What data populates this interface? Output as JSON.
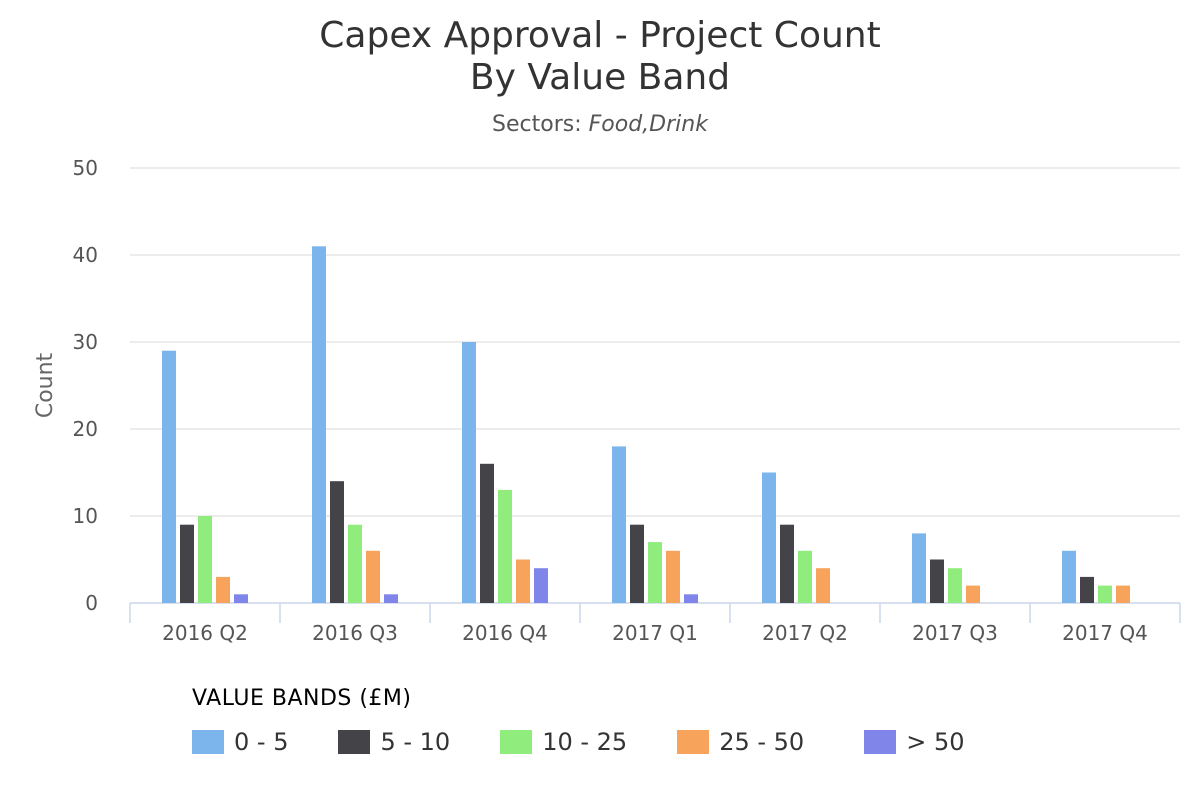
{
  "chart_data": {
    "type": "bar",
    "title_line1": "Capex Approval - Project Count",
    "title_line2": "By Value Band",
    "subtitle_prefix": "Sectors: ",
    "subtitle_sectors": "Food,Drink",
    "ylabel": "Count",
    "xlabel": "",
    "ylim": [
      0,
      50
    ],
    "yticks": [
      0,
      10,
      20,
      30,
      40,
      50
    ],
    "grid": true,
    "legend_title": "VALUE BANDS (£M)",
    "legend_position": "bottom-left",
    "categories": [
      "2016 Q2",
      "2016 Q3",
      "2016 Q4",
      "2017 Q1",
      "2017 Q2",
      "2017 Q3",
      "2017 Q4"
    ],
    "series": [
      {
        "name": "0 - 5",
        "color": "#7cb5ec",
        "values": [
          29,
          41,
          30,
          18,
          15,
          8,
          6
        ]
      },
      {
        "name": "5 - 10",
        "color": "#434348",
        "values": [
          9,
          14,
          16,
          9,
          9,
          5,
          3
        ]
      },
      {
        "name": "10 - 25",
        "color": "#90ed7d",
        "values": [
          10,
          9,
          13,
          7,
          6,
          4,
          2
        ]
      },
      {
        "name": "25 - 50",
        "color": "#f7a35c",
        "values": [
          3,
          6,
          5,
          6,
          4,
          2,
          2
        ]
      },
      {
        "name": "> 50",
        "color": "#8085e9",
        "values": [
          1,
          1,
          4,
          1,
          0,
          0,
          0
        ]
      }
    ]
  }
}
